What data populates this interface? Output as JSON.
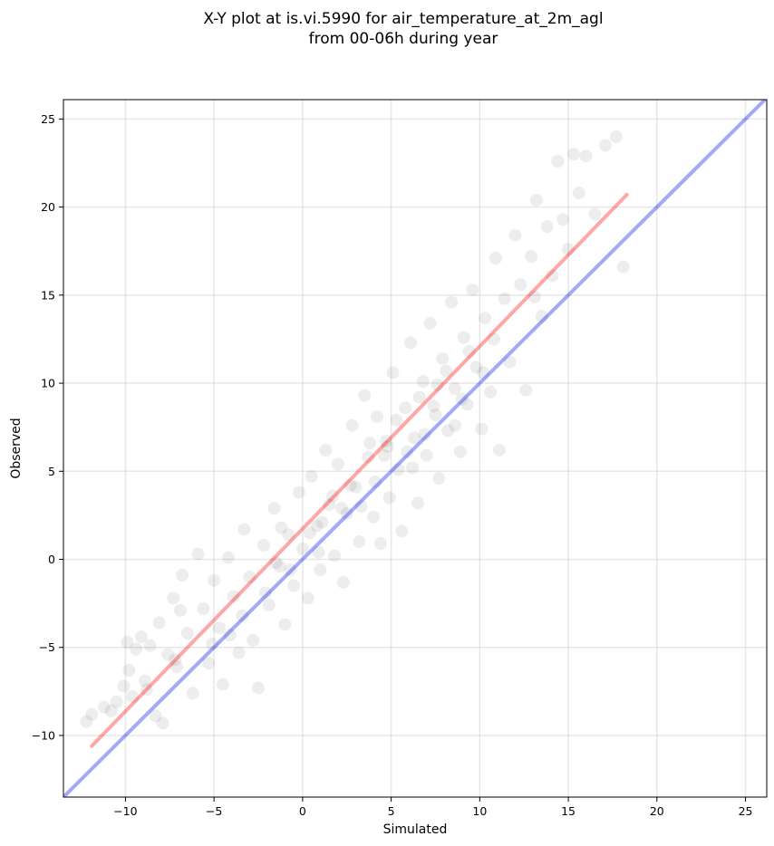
{
  "chart_data": {
    "type": "scatter",
    "title_line1": "X-Y plot at is.vi.5990 for air_temperature_at_2m_agl",
    "title_line2": "from 00-06h during year",
    "xlabel": "Simulated",
    "ylabel": "Observed",
    "xlim": [
      -13.5,
      26.2
    ],
    "ylim": [
      -13.5,
      26.1
    ],
    "xticks": [
      -10,
      -5,
      0,
      5,
      10,
      15,
      20,
      25
    ],
    "yticks": [
      -10,
      -5,
      0,
      5,
      10,
      15,
      20,
      25
    ],
    "xtick_labels": [
      "−10",
      "−5",
      "0",
      "5",
      "10",
      "15",
      "20",
      "25"
    ],
    "ytick_labels": [
      "−10",
      "−5",
      "0",
      "5",
      "10",
      "15",
      "20",
      "25"
    ],
    "grid": true,
    "series": [
      {
        "kind": "scatter",
        "color": "#000000",
        "opacity": 0.07,
        "points": [
          [
            -11.9,
            -8.8
          ],
          [
            -11.2,
            -8.4
          ],
          [
            -10.8,
            -8.6
          ],
          [
            -10.5,
            -8.1
          ],
          [
            -10.1,
            -7.2
          ],
          [
            -9.8,
            -6.3
          ],
          [
            -9.6,
            -7.8
          ],
          [
            -9.4,
            -5.1
          ],
          [
            -9.1,
            -4.4
          ],
          [
            -8.9,
            -6.9
          ],
          [
            -8.6,
            -4.9
          ],
          [
            -8.3,
            -8.9
          ],
          [
            -8.1,
            -3.6
          ],
          [
            -7.9,
            -9.3
          ],
          [
            -7.6,
            -5.4
          ],
          [
            -7.3,
            -2.2
          ],
          [
            -7.1,
            -6.1
          ],
          [
            -6.8,
            -0.9
          ],
          [
            -6.5,
            -4.2
          ],
          [
            -6.2,
            -7.6
          ],
          [
            -5.9,
            0.3
          ],
          [
            -5.6,
            -2.8
          ],
          [
            -5.3,
            -5.9
          ],
          [
            -5.0,
            -1.2
          ],
          [
            -4.7,
            -3.9
          ],
          [
            -4.5,
            -7.1
          ],
          [
            -4.2,
            0.1
          ],
          [
            -3.9,
            -2.1
          ],
          [
            -3.6,
            -5.3
          ],
          [
            -3.3,
            1.7
          ],
          [
            -3.0,
            -1.0
          ],
          [
            -2.8,
            -4.6
          ],
          [
            -2.5,
            -7.3
          ],
          [
            -2.2,
            0.8
          ],
          [
            -1.9,
            -2.6
          ],
          [
            -1.6,
            2.9
          ],
          [
            -1.3,
            -0.4
          ],
          [
            -1.0,
            -3.7
          ],
          [
            -0.8,
            1.4
          ],
          [
            -0.5,
            -1.5
          ],
          [
            -0.2,
            3.8
          ],
          [
            0.0,
            0.6
          ],
          [
            0.3,
            -2.2
          ],
          [
            0.5,
            4.7
          ],
          [
            0.8,
            1.9
          ],
          [
            1.0,
            -0.6
          ],
          [
            1.3,
            6.2
          ],
          [
            1.5,
            3.1
          ],
          [
            1.8,
            0.2
          ],
          [
            2.0,
            5.4
          ],
          [
            2.3,
            -1.3
          ],
          [
            2.5,
            2.6
          ],
          [
            2.8,
            7.6
          ],
          [
            3.0,
            4.1
          ],
          [
            3.2,
            1.0
          ],
          [
            3.5,
            9.3
          ],
          [
            3.7,
            5.8
          ],
          [
            4.0,
            2.4
          ],
          [
            4.2,
            8.1
          ],
          [
            4.4,
            0.9
          ],
          [
            4.7,
            6.7
          ],
          [
            4.9,
            3.5
          ],
          [
            5.1,
            10.6
          ],
          [
            5.4,
            5.1
          ],
          [
            5.6,
            1.6
          ],
          [
            5.8,
            8.6
          ],
          [
            6.1,
            12.3
          ],
          [
            6.3,
            6.9
          ],
          [
            6.5,
            3.2
          ],
          [
            6.8,
            10.1
          ],
          [
            7.0,
            5.9
          ],
          [
            7.2,
            13.4
          ],
          [
            7.5,
            8.2
          ],
          [
            7.7,
            4.6
          ],
          [
            7.9,
            11.4
          ],
          [
            8.2,
            7.3
          ],
          [
            8.4,
            14.6
          ],
          [
            8.6,
            9.7
          ],
          [
            8.9,
            6.1
          ],
          [
            9.1,
            12.6
          ],
          [
            9.3,
            8.8
          ],
          [
            9.6,
            15.3
          ],
          [
            9.8,
            10.9
          ],
          [
            10.1,
            7.4
          ],
          [
            10.3,
            13.7
          ],
          [
            10.6,
            9.5
          ],
          [
            10.9,
            17.1
          ],
          [
            11.1,
            6.2
          ],
          [
            11.4,
            14.8
          ],
          [
            11.7,
            11.2
          ],
          [
            12.0,
            18.4
          ],
          [
            12.3,
            15.6
          ],
          [
            12.6,
            9.6
          ],
          [
            12.9,
            17.2
          ],
          [
            13.2,
            20.4
          ],
          [
            13.5,
            13.8
          ],
          [
            13.8,
            18.9
          ],
          [
            14.1,
            16.1
          ],
          [
            14.4,
            22.6
          ],
          [
            14.7,
            19.3
          ],
          [
            15.0,
            17.6
          ],
          [
            15.3,
            23.0
          ],
          [
            15.6,
            20.8
          ],
          [
            16.0,
            22.9
          ],
          [
            16.5,
            19.6
          ],
          [
            17.1,
            23.5
          ],
          [
            17.7,
            24.0
          ],
          [
            18.1,
            16.6
          ],
          [
            -12.2,
            -9.2
          ],
          [
            -9.9,
            -4.7
          ],
          [
            -6.9,
            -2.9
          ],
          [
            -4.1,
            -4.3
          ],
          [
            -1.2,
            1.8
          ],
          [
            1.7,
            3.6
          ],
          [
            4.6,
            5.9
          ],
          [
            7.4,
            8.7
          ],
          [
            10.2,
            10.6
          ],
          [
            13.1,
            14.9
          ],
          [
            0.9,
            0.4
          ],
          [
            2.2,
            2.9
          ],
          [
            3.8,
            6.6
          ],
          [
            5.3,
            7.9
          ],
          [
            6.6,
            9.2
          ],
          [
            8.1,
            10.7
          ],
          [
            9.4,
            11.8
          ],
          [
            -0.7,
            -0.6
          ],
          [
            -2.1,
            -1.9
          ],
          [
            -3.4,
            -3.2
          ],
          [
            -5.1,
            -4.8
          ],
          [
            -7.2,
            -5.7
          ],
          [
            -8.8,
            -7.4
          ],
          [
            1.1,
            2.1
          ],
          [
            2.7,
            4.2
          ],
          [
            4.1,
            4.4
          ],
          [
            5.9,
            6.1
          ],
          [
            6.9,
            7.1
          ],
          [
            8.6,
            7.6
          ],
          [
            0.4,
            1.5
          ],
          [
            -1.5,
            -0.2
          ],
          [
            3.3,
            3.0
          ],
          [
            4.8,
            6.4
          ],
          [
            6.2,
            5.2
          ],
          [
            7.6,
            9.9
          ],
          [
            9.0,
            9.1
          ],
          [
            10.8,
            12.5
          ]
        ]
      },
      {
        "kind": "line",
        "name": "",
        "color": "#ff0000",
        "opacity": 0.35,
        "x": [
          -11.9,
          18.3
        ],
        "y": [
          -10.6,
          20.7
        ]
      },
      {
        "kind": "line",
        "name": "",
        "color": "#0000ff",
        "opacity": 0.35,
        "x": [
          -13.5,
          26.2
        ],
        "y": [
          -13.5,
          26.2
        ]
      }
    ]
  }
}
